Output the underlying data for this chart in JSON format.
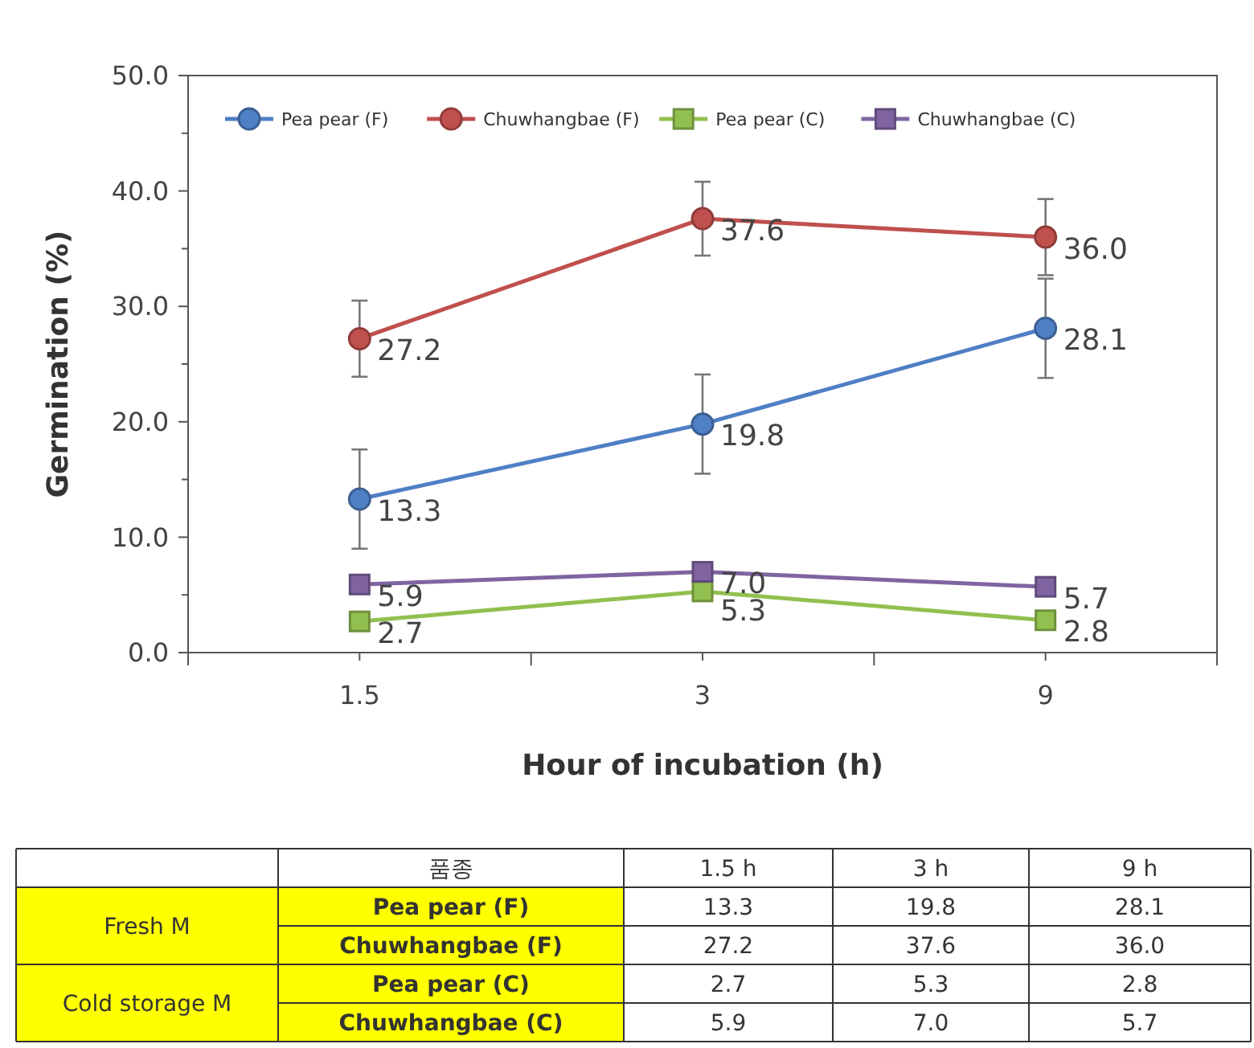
{
  "chart_data": {
    "type": "line",
    "xlabel": "Hour of incubation (h)",
    "ylabel": "Germination (%)",
    "categories": [
      "1.5",
      "3",
      "9"
    ],
    "series": [
      {
        "name": "Pea pear (F)",
        "color": "#4f7fc4",
        "marker": "circle",
        "values": [
          13.3,
          19.8,
          28.1
        ],
        "value_labels": [
          "13.3",
          "19.8",
          "28.1"
        ],
        "errors": [
          4.3,
          4.3,
          4.3
        ]
      },
      {
        "name": "Chuwhangbae (F)",
        "color": "#c0504d",
        "marker": "circle",
        "values": [
          27.2,
          37.6,
          36.0
        ],
        "value_labels": [
          "27.2",
          "37.6",
          "36.0"
        ],
        "errors": [
          3.3,
          3.2,
          3.3
        ]
      },
      {
        "name": "Pea pear (C)",
        "color": "#92c050",
        "marker": "square",
        "values": [
          2.7,
          5.3,
          2.8
        ],
        "value_labels": [
          "2.7",
          "5.3",
          "2.8"
        ]
      },
      {
        "name": "Chuwhangbae (C)",
        "color": "#8064a2",
        "marker": "square",
        "values": [
          5.9,
          7.0,
          5.7
        ],
        "value_labels": [
          "5.9",
          "7.0",
          "5.7"
        ]
      }
    ],
    "ylim": [
      0,
      50
    ],
    "yticks": [
      {
        "value": 0,
        "label": "0.0"
      },
      {
        "value": 10,
        "label": "10.0"
      },
      {
        "value": 20,
        "label": "20.0"
      },
      {
        "value": 30,
        "label": "30.0"
      },
      {
        "value": 40,
        "label": "40.0"
      },
      {
        "value": 50,
        "label": "50.0"
      }
    ],
    "grid": false,
    "legend": "top",
    "annotations": [
      "품종",
      "1.5 h",
      "3 h",
      "9 h",
      "Fresh M",
      "Cold storage M"
    ]
  }
}
